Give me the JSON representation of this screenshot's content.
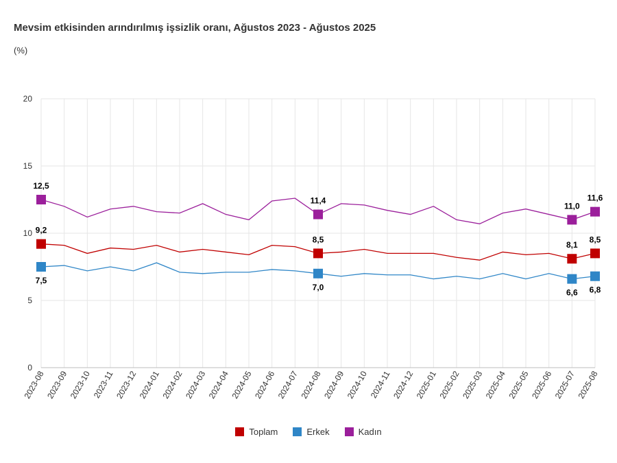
{
  "chart_data": {
    "type": "line",
    "title": "Mevsim etkisinden arındırılmış işsizlik oranı, Ağustos 2023 - Ağustos 2025",
    "unit": "(%)",
    "ylim": [
      0,
      20
    ],
    "yticks": [
      "0",
      "5",
      "10",
      "15",
      "20"
    ],
    "grid": true,
    "legend_position": "bottom",
    "categories": [
      "2023-08",
      "2023-09",
      "2023-10",
      "2023-11",
      "2023-12",
      "2024-01",
      "2024-02",
      "2024-03",
      "2024-04",
      "2024-05",
      "2024-06",
      "2024-07",
      "2024-08",
      "2024-09",
      "2024-10",
      "2024-11",
      "2024-12",
      "2025-01",
      "2025-02",
      "2025-03",
      "2025-04",
      "2025-05",
      "2025-06",
      "2025-07",
      "2025-08"
    ],
    "series": [
      {
        "name": "Toplam",
        "color": "#c00000",
        "values": [
          9.2,
          9.1,
          8.5,
          8.9,
          8.8,
          9.1,
          8.6,
          8.8,
          8.6,
          8.4,
          9.1,
          9.0,
          8.5,
          8.6,
          8.8,
          8.5,
          8.5,
          8.5,
          8.2,
          8.0,
          8.6,
          8.4,
          8.5,
          8.1,
          8.5
        ],
        "labels": [
          {
            "index": 0,
            "text": "9,2"
          },
          {
            "index": 12,
            "text": "8,5"
          },
          {
            "index": 23,
            "text": "8,1"
          },
          {
            "index": 24,
            "text": "8,5"
          }
        ]
      },
      {
        "name": "Erkek",
        "color": "#2f86c7",
        "values": [
          7.5,
          7.6,
          7.2,
          7.5,
          7.2,
          7.8,
          7.1,
          7.0,
          7.1,
          7.1,
          7.3,
          7.2,
          7.0,
          6.8,
          7.0,
          6.9,
          6.9,
          6.6,
          6.8,
          6.6,
          7.0,
          6.6,
          7.0,
          6.6,
          6.8
        ],
        "labels": [
          {
            "index": 0,
            "text": "7,5"
          },
          {
            "index": 12,
            "text": "7,0"
          },
          {
            "index": 23,
            "text": "6,6"
          },
          {
            "index": 24,
            "text": "6,8"
          }
        ]
      },
      {
        "name": "Kadın",
        "color": "#9b1f9b",
        "values": [
          12.5,
          12.0,
          11.2,
          11.8,
          12.0,
          11.6,
          11.5,
          12.2,
          11.4,
          11.0,
          12.4,
          12.6,
          11.4,
          12.2,
          12.1,
          11.7,
          11.4,
          12.0,
          11.0,
          10.7,
          11.5,
          11.8,
          11.4,
          11.0,
          11.6
        ],
        "labels": [
          {
            "index": 0,
            "text": "12,5"
          },
          {
            "index": 12,
            "text": "11,4"
          },
          {
            "index": 23,
            "text": "11,0"
          },
          {
            "index": 24,
            "text": "11,6"
          }
        ]
      }
    ]
  }
}
